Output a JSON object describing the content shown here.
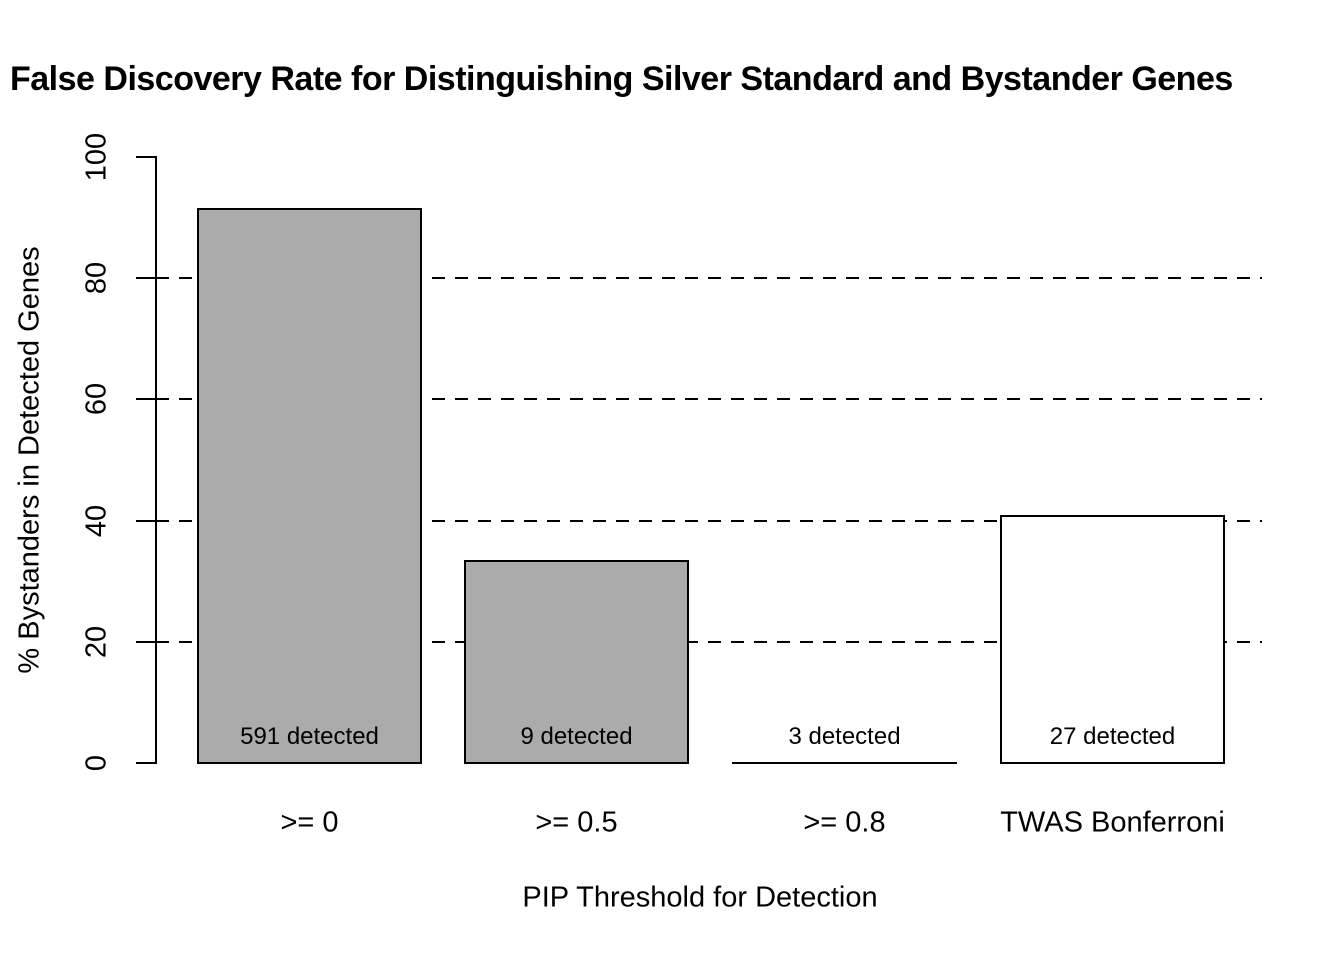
{
  "title": "False Discovery Rate for Distinguishing Silver Standard and Bystander Genes",
  "chart_data": {
    "type": "bar",
    "title": "False Discovery Rate for Distinguishing Silver Standard and Bystander Genes",
    "xlabel": "PIP Threshold for Detection",
    "ylabel": "% Bystanders in Detected Genes",
    "categories": [
      ">= 0",
      ">= 0.5",
      ">= 0.8",
      "TWAS Bonferroni"
    ],
    "values": [
      91.5,
      33.3,
      0,
      40.7
    ],
    "bar_labels": [
      "591 detected",
      "9 detected",
      "3 detected",
      "27 detected"
    ],
    "bar_fill_colors": [
      "#ABABAB",
      "#ABABAB",
      "#ABABAB",
      "#FFFFFF"
    ],
    "bar_border_color": "#000000",
    "ylim": [
      0,
      100
    ],
    "yticks": [
      0,
      20,
      40,
      60,
      80,
      100
    ],
    "gridlines_y": [
      20,
      40,
      60,
      80
    ],
    "grid_style": "dashed",
    "legend_position": "none"
  }
}
